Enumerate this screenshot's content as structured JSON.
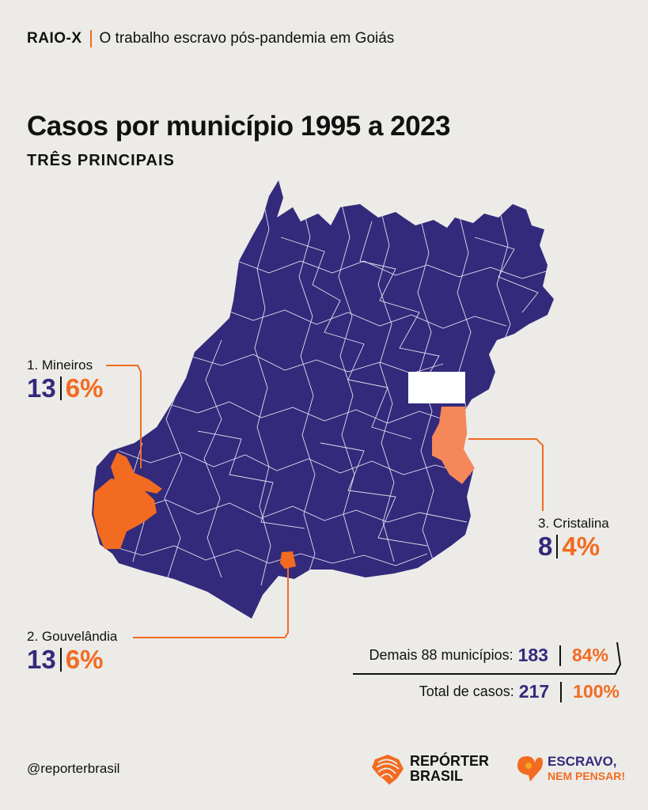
{
  "header": {
    "brand": "RAIO-X",
    "subtitle": "O trabalho escravo pós-pandemia em Goiás"
  },
  "title": "Casos por município 1995 a 2023",
  "subtitle": "TRÊS PRINCIPAIS",
  "colors": {
    "state": "#332a7c",
    "highlight": "#f26b21",
    "highlight_light": "#f5875a",
    "background": "#ecebe7"
  },
  "municipalities": [
    {
      "name": "1. Mineiros",
      "cases": "13",
      "percent": "6%"
    },
    {
      "name": "2. Gouvelândia",
      "cases": "13",
      "percent": "6%"
    },
    {
      "name": "3. Cristalina",
      "cases": "8",
      "percent": "4%"
    }
  ],
  "summary": {
    "others_label": "Demais 88 municípios:",
    "others_cases": "183",
    "others_percent": "84%",
    "total_label": "Total de casos:",
    "total_cases": "217",
    "total_percent": "100%"
  },
  "footer": {
    "handle": "@reporterbrasil",
    "logo1_line1": "REPÓRTER",
    "logo1_line2": "BRASIL",
    "logo2_line1": "ESCRAVO,",
    "logo2_line2": "NEM PENSAR!"
  }
}
